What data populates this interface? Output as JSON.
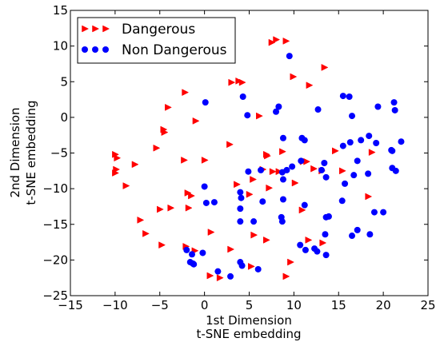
{
  "chart_data": {
    "type": "scatter",
    "xlabel_lines": [
      "1st Dimension",
      "t-SNE embedding"
    ],
    "ylabel_lines": [
      "2nd Dimension",
      "t-SNE embedding"
    ],
    "xlim": [
      -15,
      25
    ],
    "ylim": [
      -25,
      15
    ],
    "xticks": [
      -15,
      -10,
      -5,
      0,
      5,
      10,
      15,
      20,
      25
    ],
    "yticks": [
      -25,
      -20,
      -15,
      -10,
      -5,
      0,
      5,
      10,
      15
    ],
    "xtick_labels": [
      "−15",
      "−10",
      "−5",
      "0",
      "5",
      "10",
      "15",
      "20",
      "25"
    ],
    "ytick_labels": [
      "−25",
      "−20",
      "−15",
      "−10",
      "−5",
      "0",
      "5",
      "10",
      "15"
    ],
    "grid": false,
    "legend_position": "top-left",
    "series": [
      {
        "name": "Dangerous",
        "marker": "triangle-right",
        "color": "#ff0000",
        "points": [
          [
            7.5,
            10.5
          ],
          [
            8.0,
            10.9
          ],
          [
            9.1,
            10.7
          ],
          [
            13.4,
            7.0
          ],
          [
            9.9,
            5.7
          ],
          [
            11.7,
            4.5
          ],
          [
            3.8,
            5.1
          ],
          [
            4.2,
            4.9
          ],
          [
            3.0,
            4.9
          ],
          [
            -2.2,
            3.5
          ],
          [
            -4.1,
            1.4
          ],
          [
            6.1,
            0.2
          ],
          [
            -1.0,
            -0.5
          ],
          [
            -4.6,
            -1.7
          ],
          [
            -4.5,
            -2.1
          ],
          [
            -5.4,
            -4.3
          ],
          [
            -10.0,
            -5.2
          ],
          [
            -9.8,
            -5.7
          ],
          [
            -7.8,
            -6.6
          ],
          [
            -9.9,
            -7.3
          ],
          [
            -10.0,
            -7.8
          ],
          [
            -2.3,
            -6.0
          ],
          [
            0.0,
            -6.0
          ],
          [
            2.8,
            -3.8
          ],
          [
            6.9,
            -5.2
          ],
          [
            7.0,
            -5.4
          ],
          [
            8.7,
            -4.8
          ],
          [
            6.5,
            -7.3
          ],
          [
            7.6,
            -7.6
          ],
          [
            8.3,
            -7.6
          ],
          [
            5.4,
            -8.7
          ],
          [
            7.2,
            -9.9
          ],
          [
            3.6,
            -9.4
          ],
          [
            5.0,
            -10.8
          ],
          [
            10.1,
            -9.2
          ],
          [
            11.0,
            -6.2
          ],
          [
            11.4,
            -6.2
          ],
          [
            12.2,
            -7.2
          ],
          [
            13.1,
            -7.5
          ],
          [
            14.6,
            -4.7
          ],
          [
            15.4,
            -7.5
          ],
          [
            18.7,
            -4.9
          ],
          [
            18.3,
            -11.1
          ],
          [
            -8.8,
            -9.6
          ],
          [
            -7.2,
            -14.4
          ],
          [
            -6.6,
            -16.3
          ],
          [
            -5.0,
            -12.9
          ],
          [
            -3.8,
            -12.7
          ],
          [
            -1.9,
            -10.6
          ],
          [
            -1.5,
            -11.0
          ],
          [
            -1.8,
            -12.7
          ],
          [
            -4.8,
            -17.9
          ],
          [
            -2.1,
            -18.1
          ],
          [
            -1.1,
            -18.7
          ],
          [
            0.7,
            -16.1
          ],
          [
            0.6,
            -22.2
          ],
          [
            1.7,
            -22.5
          ],
          [
            2.9,
            -18.5
          ],
          [
            5.5,
            -16.5
          ],
          [
            6.9,
            -17.2
          ],
          [
            10.9,
            -13.0
          ],
          [
            11.6,
            -17.2
          ],
          [
            9.6,
            -20.3
          ],
          [
            13.2,
            -17.6
          ],
          [
            9.1,
            -22.3
          ],
          [
            5.2,
            -20.9
          ]
        ]
      },
      {
        "name": "Non Dangerous",
        "marker": "circle",
        "color": "#0000ff",
        "points": [
          [
            9.5,
            8.6
          ],
          [
            0.1,
            2.1
          ],
          [
            4.3,
            2.9
          ],
          [
            8.3,
            1.5
          ],
          [
            8.0,
            0.8
          ],
          [
            4.8,
            0.3
          ],
          [
            12.7,
            1.1
          ],
          [
            15.5,
            3.0
          ],
          [
            16.2,
            2.9
          ],
          [
            19.4,
            1.5
          ],
          [
            21.2,
            2.1
          ],
          [
            21.3,
            1.0
          ],
          [
            16.5,
            0.2
          ],
          [
            8.8,
            -2.9
          ],
          [
            10.9,
            -2.9
          ],
          [
            11.2,
            -3.2
          ],
          [
            22.0,
            -3.4
          ],
          [
            21.0,
            -4.7
          ],
          [
            20.9,
            -4.6
          ],
          [
            19.2,
            -3.6
          ],
          [
            18.4,
            -2.6
          ],
          [
            17.5,
            -3.2
          ],
          [
            16.3,
            -3.5
          ],
          [
            15.5,
            -4.0
          ],
          [
            17.1,
            -6.1
          ],
          [
            21.4,
            -7.5
          ],
          [
            21.0,
            -7.1
          ],
          [
            18.3,
            -7.9
          ],
          [
            16.7,
            -8.1
          ],
          [
            15.7,
            -9.3
          ],
          [
            10.8,
            -6.1
          ],
          [
            9.8,
            -6.9
          ],
          [
            9.2,
            -7.4
          ],
          [
            8.7,
            -7.7
          ],
          [
            8.8,
            -8.7
          ],
          [
            6.3,
            -7.4
          ],
          [
            4.9,
            -7.6
          ],
          [
            13.4,
            -6.4
          ],
          [
            13.1,
            -7.4
          ],
          [
            13.6,
            -8.4
          ],
          [
            15.4,
            -11.7
          ],
          [
            19.0,
            -13.3
          ],
          [
            20.0,
            -13.3
          ],
          [
            0.0,
            -9.7
          ],
          [
            1.1,
            -11.9
          ],
          [
            0.2,
            -12.0
          ],
          [
            4.0,
            -10.5
          ],
          [
            4.1,
            -11.3
          ],
          [
            6.5,
            -11.8
          ],
          [
            8.8,
            -11.5
          ],
          [
            4.0,
            -12.8
          ],
          [
            11.2,
            -12.3
          ],
          [
            13.6,
            -14.0
          ],
          [
            13.9,
            -13.9
          ],
          [
            8.7,
            -14.6
          ],
          [
            8.6,
            -14.0
          ],
          [
            4.0,
            -14.6
          ],
          [
            5.5,
            -14.6
          ],
          [
            13.5,
            -16.4
          ],
          [
            17.1,
            -15.8
          ],
          [
            16.5,
            -16.6
          ],
          [
            18.5,
            -16.4
          ],
          [
            10.7,
            -17.9
          ],
          [
            12.3,
            -18.4
          ],
          [
            11.3,
            -18.6
          ],
          [
            13.6,
            -19.3
          ],
          [
            12.6,
            -18.8
          ],
          [
            2.9,
            -22.3
          ],
          [
            1.5,
            -21.6
          ],
          [
            4.0,
            -20.3
          ],
          [
            4.2,
            -20.8
          ],
          [
            6.0,
            -21.3
          ],
          [
            -1.4,
            -19.2
          ],
          [
            -1.6,
            -20.3
          ],
          [
            -1.2,
            -20.6
          ],
          [
            -1.3,
            -20.5
          ],
          [
            -2.0,
            -18.6
          ],
          [
            -0.2,
            -19.0
          ]
        ]
      }
    ]
  }
}
